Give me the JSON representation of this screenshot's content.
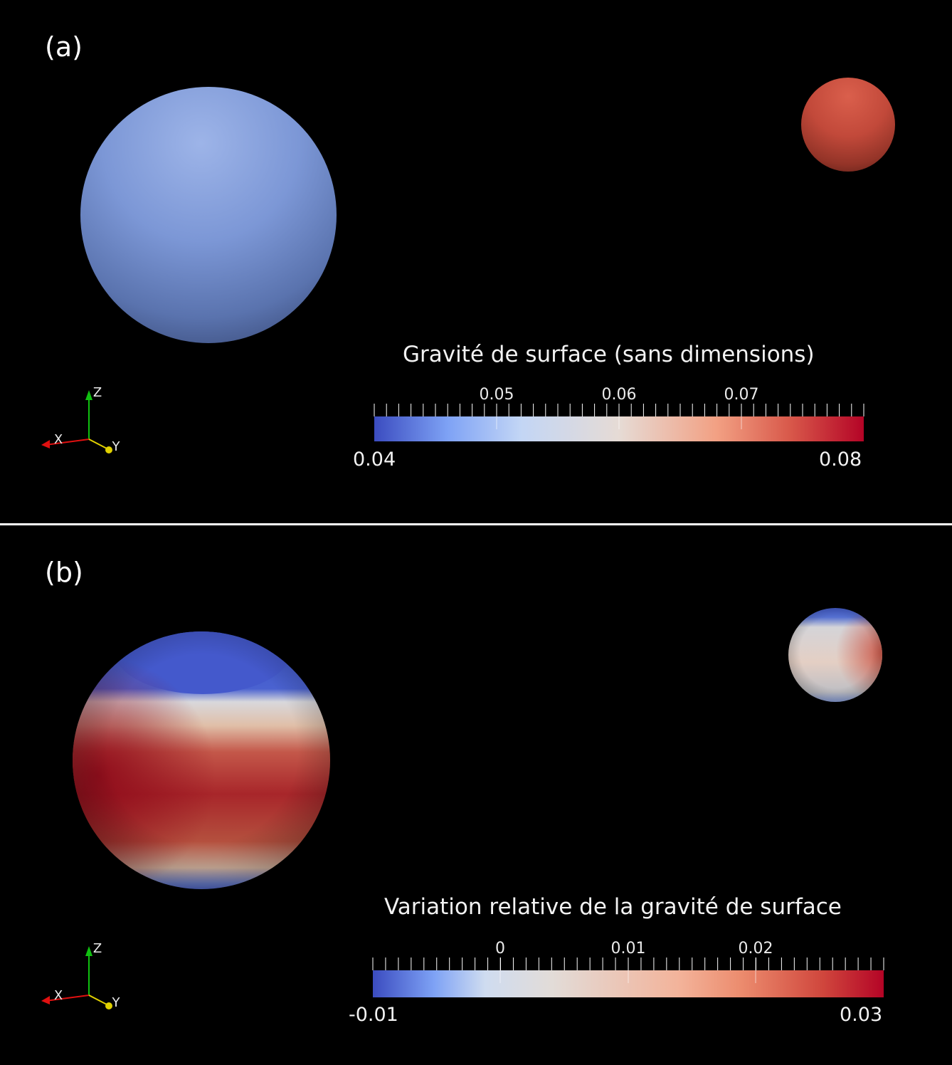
{
  "panels": [
    {
      "label": "(a)",
      "colorbar": {
        "title": "Gravité de surface (sans dimensions)",
        "min_label": "0.04",
        "max_label": "0.08",
        "tick_labels": [
          "0.05",
          "0.06",
          "0.07"
        ]
      }
    },
    {
      "label": "(b)",
      "colorbar": {
        "title": "Variation relative de la gravité de surface",
        "min_label": "-0.01",
        "max_label": "0.03",
        "tick_labels": [
          "0",
          "0.01",
          "0.02"
        ]
      }
    }
  ],
  "axes_labels": {
    "x": "X",
    "y": "Y",
    "z": "Z"
  },
  "colors": {
    "background": "#000000",
    "colormap_low": "#3b4cc0",
    "colormap_mid": "#dddddd",
    "colormap_high": "#b40426",
    "axis_x": "#e01010",
    "axis_y": "#e0d000",
    "axis_z": "#10c010"
  }
}
